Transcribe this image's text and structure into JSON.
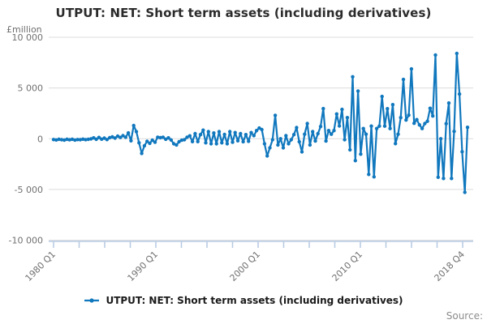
{
  "header": {
    "title": "UTPUT: NET: Short term assets (including derivatives)",
    "unit_label": "£million"
  },
  "legend": {
    "label": "UTPUT: NET: Short term assets (including derivatives)"
  },
  "footer": {
    "source_label": "Source:"
  },
  "colors": {
    "series": "#1178be",
    "grid": "#dcdcdc",
    "axis": "#b6c9e2",
    "tick_text": "#707070",
    "title_text": "#2b2b2b"
  },
  "chart_data": {
    "type": "line",
    "title": "UTPUT: NET: Short term assets (including derivatives)",
    "ylabel": "£million",
    "frequency": "quarterly",
    "x_range": [
      "1980 Q1",
      "2018 Q4"
    ],
    "x_tick_labels": [
      "1980 Q1",
      "1990 Q1",
      "2000 Q1",
      "2010 Q1",
      "2018 Q4"
    ],
    "y_tick_labels": [
      "10 000",
      "5 000",
      "0",
      "-5 000",
      "-10 000"
    ],
    "y_tick_values": [
      10000,
      5000,
      0,
      -5000,
      -10000
    ],
    "ylim": [
      -10000,
      10000
    ],
    "grid": "horizontal",
    "legend_position": "bottom",
    "marker": "circle",
    "series": [
      {
        "name": "UTPUT: NET: Short term assets (including derivatives)",
        "values": [
          -80,
          -120,
          -60,
          -100,
          -140,
          -60,
          -110,
          -50,
          -130,
          -80,
          -100,
          -40,
          -90,
          -60,
          -20,
          80,
          -60,
          120,
          -40,
          60,
          -80,
          100,
          180,
          60,
          250,
          120,
          300,
          150,
          570,
          -200,
          1300,
          700,
          -400,
          -1450,
          -700,
          -250,
          -450,
          -150,
          -350,
          150,
          100,
          150,
          -50,
          80,
          -120,
          -500,
          -620,
          -300,
          -150,
          -100,
          150,
          280,
          -280,
          500,
          -280,
          400,
          840,
          -400,
          700,
          -500,
          560,
          -500,
          700,
          -400,
          420,
          -500,
          700,
          -350,
          600,
          -200,
          500,
          -300,
          400,
          -250,
          600,
          300,
          800,
          1050,
          900,
          -500,
          -1700,
          -900,
          -100,
          2300,
          -620,
          0,
          -900,
          300,
          -500,
          -100,
          400,
          1100,
          -300,
          -1300,
          440,
          1500,
          -620,
          700,
          -230,
          500,
          1200,
          2970,
          -230,
          800,
          440,
          800,
          2440,
          1260,
          2890,
          -100,
          2080,
          -1100,
          6100,
          -2160,
          4700,
          -1520,
          1000,
          440,
          -3520,
          1240,
          -3760,
          1000,
          1240,
          4160,
          1240,
          2960,
          1000,
          3360,
          -480,
          440,
          2080,
          5840,
          1840,
          2320,
          6880,
          1520,
          1880,
          1360,
          1000,
          1500,
          1720,
          3000,
          2240,
          8250,
          -3800,
          0,
          -3920,
          1480,
          3520,
          -3920,
          720,
          8400,
          4400,
          -1280,
          -5280,
          1120
        ]
      }
    ]
  }
}
